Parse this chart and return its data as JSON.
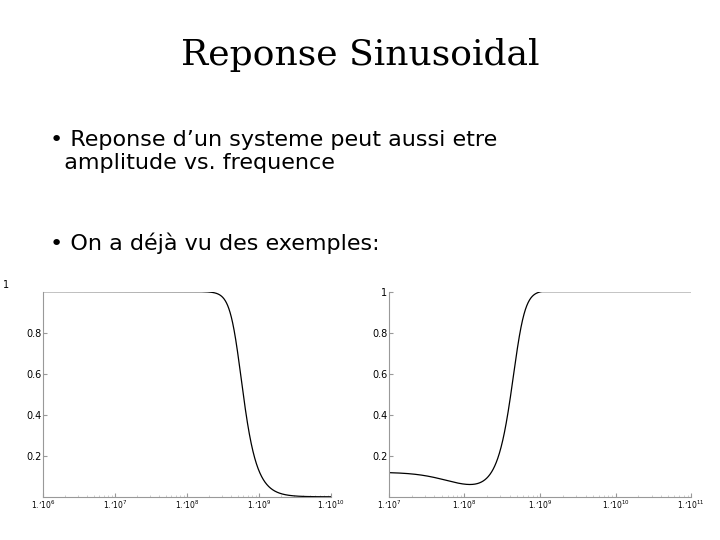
{
  "title": "Reponse Sinusoidal",
  "bullet1": "Reponse d’un systeme peut aussi etre\n  amplitude vs. frequence",
  "bullet2": "On a déjà vu des exemples:",
  "bg_color": "#ffffff",
  "text_color": "#000000",
  "title_fontsize": 26,
  "bullet_fontsize": 16,
  "plot1": {
    "xmin": 1000000.0,
    "xmax": 10000000000.0,
    "ymin": 0,
    "ymax": 1,
    "cutoff": 500000000.0,
    "order": 3,
    "xticks": [
      1000000.0,
      10000000.0,
      100000000.0,
      1000000000.0,
      10000000000.0
    ],
    "xtick_exps": [
      6,
      7,
      8,
      9,
      10
    ],
    "yticks": [
      0.2,
      0.4,
      0.6,
      0.8
    ],
    "ytick_top": 1.0,
    "type": "lowpass"
  },
  "plot2": {
    "xmin": 10000000.0,
    "xmax": 100000000000.0,
    "ymin": 0,
    "ymax": 1,
    "cutoff": 500000000.0,
    "order": 3,
    "xticks": [
      10000000.0,
      100000000.0,
      1000000000.0,
      10000000000.0,
      100000000000.0
    ],
    "xtick_exps": [
      7,
      8,
      9,
      10,
      11
    ],
    "yticks": [
      0.2,
      0.4,
      0.6,
      0.8,
      1.0
    ],
    "type": "highpass"
  }
}
